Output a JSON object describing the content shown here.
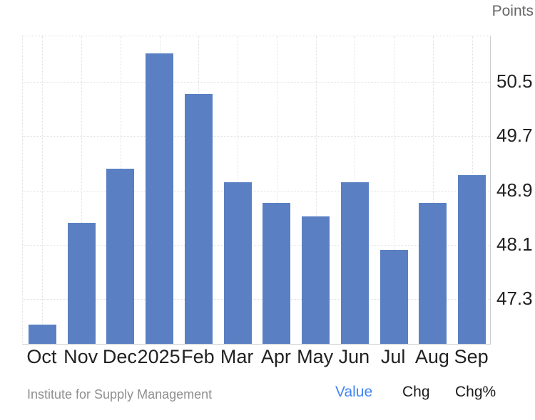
{
  "header": {
    "points_label": "Points"
  },
  "footer": {
    "source": "Institute for Supply Management",
    "tabs": [
      {
        "label": "Value",
        "active": true
      },
      {
        "label": "Chg",
        "active": false
      },
      {
        "label": "Chg%",
        "active": false
      }
    ]
  },
  "colors": {
    "bar": "#5a80c3",
    "active_tab": "#4285f4",
    "tab_text": "#1a1a1a",
    "axis_label": "#222222",
    "muted_text": "#8f8f8f",
    "points_label_text": "#666666",
    "gridline": "#e0e0e0",
    "axis_line": "#cccccc"
  },
  "chart_data": {
    "type": "bar",
    "title": "",
    "ylabel": "Points",
    "categories": [
      "Oct",
      "Nov",
      "Dec",
      "2025",
      "Feb",
      "Mar",
      "Apr",
      "May",
      "Jun",
      "Jul",
      "Aug",
      "Sep"
    ],
    "values": [
      46.9,
      48.4,
      49.2,
      50.9,
      50.3,
      49.0,
      48.7,
      48.5,
      49.0,
      48.0,
      48.7,
      49.1
    ],
    "yticks": [
      50.5,
      49.7,
      48.9,
      48.1,
      47.3
    ],
    "ylim": [
      46.62,
      51.17
    ],
    "grid": true,
    "legend": false,
    "bar_color": "#5a80c3"
  }
}
